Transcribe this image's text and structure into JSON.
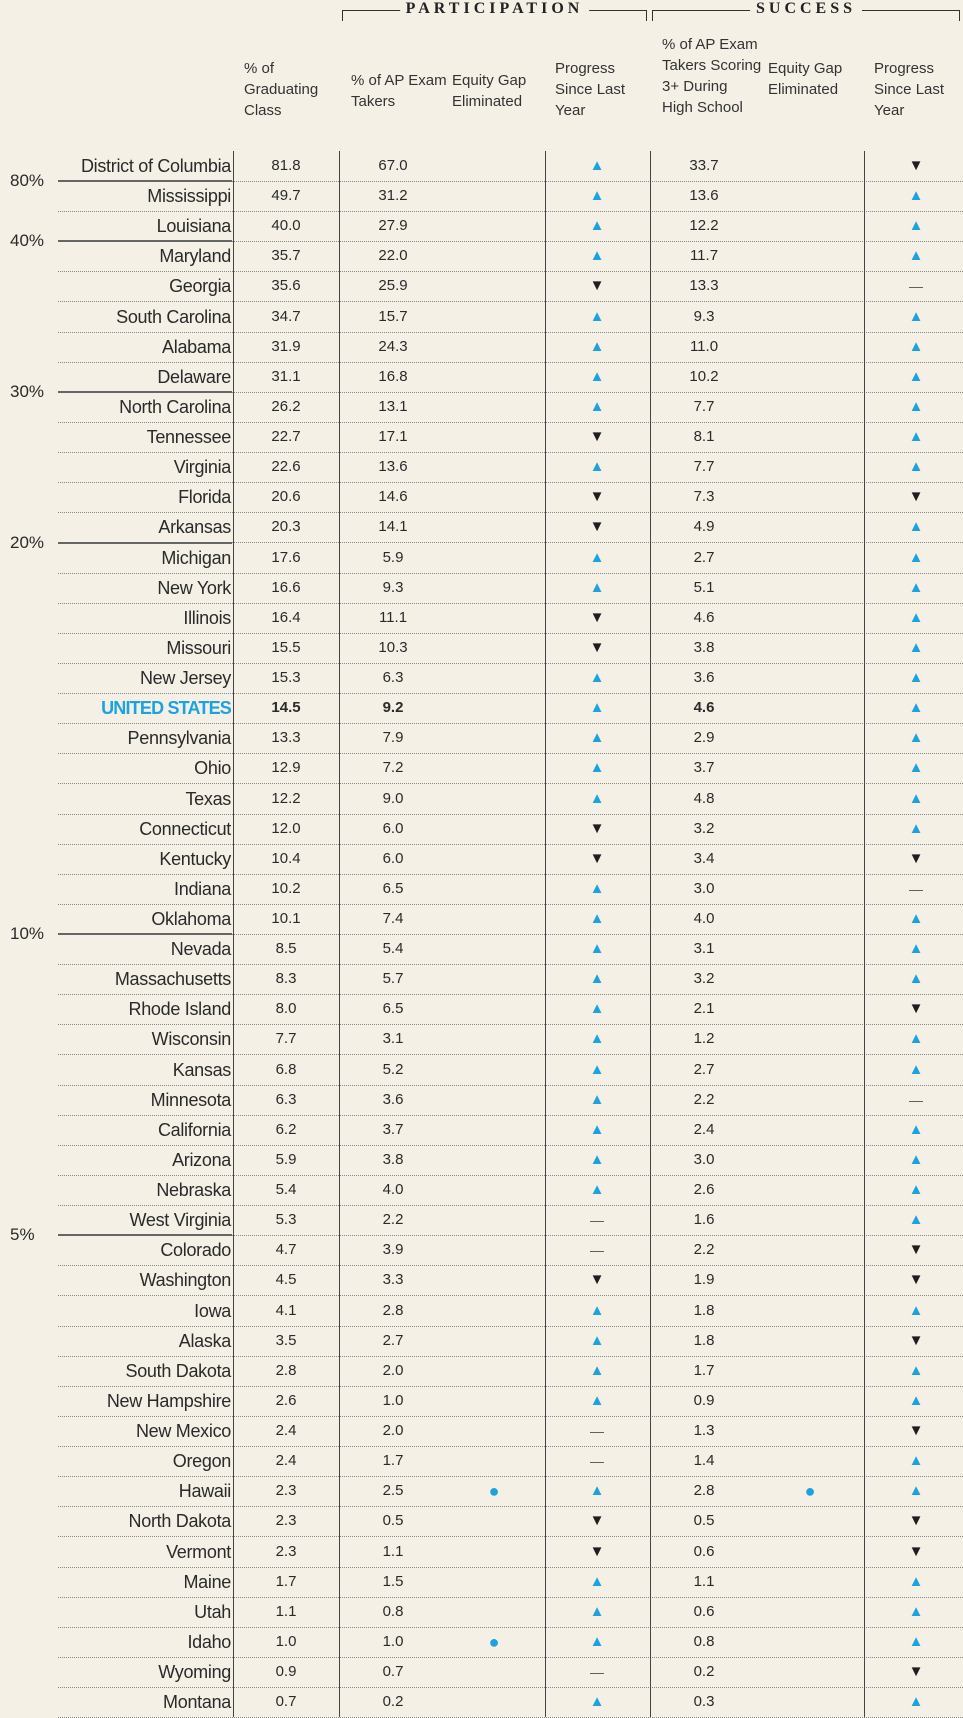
{
  "group_headers": [
    "PARTICIPATION",
    "SUCCESS"
  ],
  "columns": [
    "% of Graduating Class",
    "% of AP Exam Takers",
    "Equity Gap Eliminated",
    "Progress Since Last Year",
    "% of AP Exam Takers Scoring 3+ During High School",
    "Equity Gap Eliminated",
    "Progress Since Last Year"
  ],
  "rows": [
    {
      "state": "District of Columbia",
      "values": [
        "81.8",
        "67.0",
        null,
        "▲",
        "33.7",
        null,
        "▼"
      ],
      "marker": "80%"
    },
    {
      "state": "Mississippi",
      "values": [
        "49.7",
        "31.2",
        null,
        "▲",
        "13.6",
        null,
        "▲"
      ]
    },
    {
      "state": "Louisiana",
      "values": [
        "40.0",
        "27.9",
        null,
        "▲",
        "12.2",
        null,
        "▲"
      ],
      "marker": "40%"
    },
    {
      "state": "Maryland",
      "values": [
        "35.7",
        "22.0",
        null,
        "▲",
        "11.7",
        null,
        "▲"
      ]
    },
    {
      "state": "Georgia",
      "values": [
        "35.6",
        "25.9",
        null,
        "▼",
        "13.3",
        null,
        "—"
      ]
    },
    {
      "state": "South Carolina",
      "values": [
        "34.7",
        "15.7",
        null,
        "▲",
        "9.3",
        null,
        "▲"
      ]
    },
    {
      "state": "Alabama",
      "values": [
        "31.9",
        "24.3",
        null,
        "▲",
        "11.0",
        null,
        "▲"
      ]
    },
    {
      "state": "Delaware",
      "values": [
        "31.1",
        "16.8",
        null,
        "▲",
        "10.2",
        null,
        "▲"
      ],
      "marker": "30%"
    },
    {
      "state": "North Carolina",
      "values": [
        "26.2",
        "13.1",
        null,
        "▲",
        "7.7",
        null,
        "▲"
      ]
    },
    {
      "state": "Tennessee",
      "values": [
        "22.7",
        "17.1",
        null,
        "▼",
        "8.1",
        null,
        "▲"
      ]
    },
    {
      "state": "Virginia",
      "values": [
        "22.6",
        "13.6",
        null,
        "▲",
        "7.7",
        null,
        "▲"
      ]
    },
    {
      "state": "Florida",
      "values": [
        "20.6",
        "14.6",
        null,
        "▼",
        "7.3",
        null,
        "▼"
      ]
    },
    {
      "state": "Arkansas",
      "values": [
        "20.3",
        "14.1",
        null,
        "▼",
        "4.9",
        null,
        "▲"
      ],
      "marker": "20%"
    },
    {
      "state": "Michigan",
      "values": [
        "17.6",
        "5.9",
        null,
        "▲",
        "2.7",
        null,
        "▲"
      ]
    },
    {
      "state": "New York",
      "values": [
        "16.6",
        "9.3",
        null,
        "▲",
        "5.1",
        null,
        "▲"
      ]
    },
    {
      "state": "Illinois",
      "values": [
        "16.4",
        "11.1",
        null,
        "▼",
        "4.6",
        null,
        "▲"
      ]
    },
    {
      "state": "Missouri",
      "values": [
        "15.5",
        "10.3",
        null,
        "▼",
        "3.8",
        null,
        "▲"
      ]
    },
    {
      "state": "New Jersey",
      "values": [
        "15.3",
        "6.3",
        null,
        "▲",
        "3.6",
        null,
        "▲"
      ]
    },
    {
      "state": "UNITED STATES",
      "values": [
        "14.5",
        "9.2",
        null,
        "▲",
        "4.6",
        null,
        "▲"
      ],
      "highlight": true
    },
    {
      "state": "Pennsylvania",
      "values": [
        "13.3",
        "7.9",
        null,
        "▲",
        "2.9",
        null,
        "▲"
      ]
    },
    {
      "state": "Ohio",
      "values": [
        "12.9",
        "7.2",
        null,
        "▲",
        "3.7",
        null,
        "▲"
      ]
    },
    {
      "state": "Texas",
      "values": [
        "12.2",
        "9.0",
        null,
        "▲",
        "4.8",
        null,
        "▲"
      ]
    },
    {
      "state": "Connecticut",
      "values": [
        "12.0",
        "6.0",
        null,
        "▼",
        "3.2",
        null,
        "▲"
      ]
    },
    {
      "state": "Kentucky",
      "values": [
        "10.4",
        "6.0",
        null,
        "▼",
        "3.4",
        null,
        "▼"
      ]
    },
    {
      "state": "Indiana",
      "values": [
        "10.2",
        "6.5",
        null,
        "▲",
        "3.0",
        null,
        "—"
      ]
    },
    {
      "state": "Oklahoma",
      "values": [
        "10.1",
        "7.4",
        null,
        "▲",
        "4.0",
        null,
        "▲"
      ],
      "marker": "10%"
    },
    {
      "state": "Nevada",
      "values": [
        "8.5",
        "5.4",
        null,
        "▲",
        "3.1",
        null,
        "▲"
      ]
    },
    {
      "state": "Massachusetts",
      "values": [
        "8.3",
        "5.7",
        null,
        "▲",
        "3.2",
        null,
        "▲"
      ]
    },
    {
      "state": "Rhode Island",
      "values": [
        "8.0",
        "6.5",
        null,
        "▲",
        "2.1",
        null,
        "▼"
      ]
    },
    {
      "state": "Wisconsin",
      "values": [
        "7.7",
        "3.1",
        null,
        "▲",
        "1.2",
        null,
        "▲"
      ]
    },
    {
      "state": "Kansas",
      "values": [
        "6.8",
        "5.2",
        null,
        "▲",
        "2.7",
        null,
        "▲"
      ]
    },
    {
      "state": "Minnesota",
      "values": [
        "6.3",
        "3.6",
        null,
        "▲",
        "2.2",
        null,
        "—"
      ]
    },
    {
      "state": "California",
      "values": [
        "6.2",
        "3.7",
        null,
        "▲",
        "2.4",
        null,
        "▲"
      ]
    },
    {
      "state": "Arizona",
      "values": [
        "5.9",
        "3.8",
        null,
        "▲",
        "3.0",
        null,
        "▲"
      ]
    },
    {
      "state": "Nebraska",
      "values": [
        "5.4",
        "4.0",
        null,
        "▲",
        "2.6",
        null,
        "▲"
      ]
    },
    {
      "state": "West Virginia",
      "values": [
        "5.3",
        "2.2",
        null,
        "—",
        "1.6",
        null,
        "▲"
      ],
      "marker": "5%"
    },
    {
      "state": "Colorado",
      "values": [
        "4.7",
        "3.9",
        null,
        "—",
        "2.2",
        null,
        "▼"
      ]
    },
    {
      "state": "Washington",
      "values": [
        "4.5",
        "3.3",
        null,
        "▼",
        "1.9",
        null,
        "▼"
      ]
    },
    {
      "state": "Iowa",
      "values": [
        "4.1",
        "2.8",
        null,
        "▲",
        "1.8",
        null,
        "▲"
      ]
    },
    {
      "state": "Alaska",
      "values": [
        "3.5",
        "2.7",
        null,
        "▲",
        "1.8",
        null,
        "▼"
      ]
    },
    {
      "state": "South Dakota",
      "values": [
        "2.8",
        "2.0",
        null,
        "▲",
        "1.7",
        null,
        "▲"
      ]
    },
    {
      "state": "New Hampshire",
      "values": [
        "2.6",
        "1.0",
        null,
        "▲",
        "0.9",
        null,
        "▲"
      ]
    },
    {
      "state": "New Mexico",
      "values": [
        "2.4",
        "2.0",
        null,
        "—",
        "1.3",
        null,
        "▼"
      ]
    },
    {
      "state": "Oregon",
      "values": [
        "2.4",
        "1.7",
        null,
        "—",
        "1.4",
        null,
        "▲"
      ]
    },
    {
      "state": "Hawaii",
      "values": [
        "2.3",
        "2.5",
        "●",
        "▲",
        "2.8",
        "●",
        "▲"
      ]
    },
    {
      "state": "North Dakota",
      "values": [
        "2.3",
        "0.5",
        null,
        "▼",
        "0.5",
        null,
        "▼"
      ]
    },
    {
      "state": "Vermont",
      "values": [
        "2.3",
        "1.1",
        null,
        "▼",
        "0.6",
        null,
        "▼"
      ]
    },
    {
      "state": "Maine",
      "values": [
        "1.7",
        "1.5",
        null,
        "▲",
        "1.1",
        null,
        "▲"
      ]
    },
    {
      "state": "Utah",
      "values": [
        "1.1",
        "0.8",
        null,
        "▲",
        "0.6",
        null,
        "▲"
      ]
    },
    {
      "state": "Idaho",
      "values": [
        "1.0",
        "1.0",
        "●",
        "▲",
        "0.8",
        null,
        "▲"
      ]
    },
    {
      "state": "Wyoming",
      "values": [
        "0.9",
        "0.7",
        null,
        "—",
        "0.2",
        null,
        "▼"
      ]
    },
    {
      "state": "Montana",
      "values": [
        "0.7",
        "0.2",
        null,
        "▲",
        "0.3",
        null,
        "▲"
      ]
    }
  ]
}
